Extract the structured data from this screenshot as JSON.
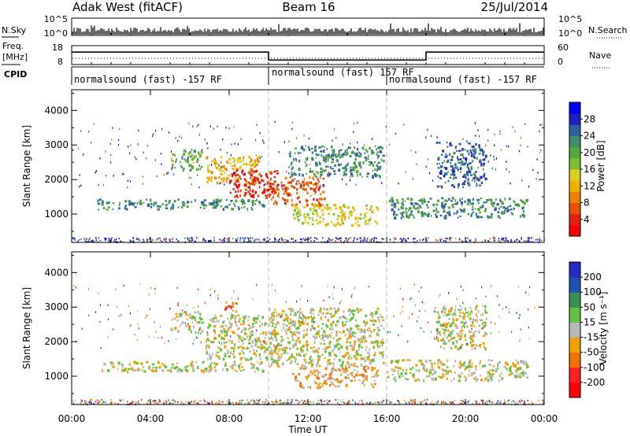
{
  "header": {
    "station": "Adak West (fitACF)",
    "beam": "Beam 16",
    "date": "25/Jul/2014"
  },
  "status_panels": {
    "nsky_label": "N.Sky",
    "nsky_ticks": [
      "10^5",
      "10^0"
    ],
    "nsearch_label": "N.Search",
    "nsearch_ticks": [
      "10^5",
      "10^0"
    ],
    "freq_label_line1": "Freq.",
    "freq_label_line2": "[MHz]",
    "freq_ticks": [
      "18",
      "8"
    ],
    "nave_label": "Nave",
    "nave_ticks": [
      "60",
      "0"
    ],
    "cpid_label": "CPID",
    "cpid_segments": [
      {
        "text": "normalsound (fast) -157 RF",
        "start_hour": 0,
        "end_hour": 10
      },
      {
        "text": "normalsound (fast) 157 RF",
        "start_hour": 10,
        "end_hour": 16
      },
      {
        "text": "normalsound (fast) -157 RF",
        "start_hour": 16,
        "end_hour": 24
      }
    ],
    "freq_steps": [
      {
        "start_hour": 0,
        "end_hour": 10,
        "mhz": 14.6
      },
      {
        "start_hour": 10,
        "end_hour": 18,
        "mhz": 10.4
      },
      {
        "start_hour": 18,
        "end_hour": 24,
        "mhz": 14.6
      }
    ]
  },
  "colorbars": {
    "power": {
      "label": "Power [dB]",
      "ticks": [
        "28",
        "24",
        "20",
        "16",
        "12",
        "8",
        "4"
      ],
      "colors": [
        "#0000ff",
        "#2020c0",
        "#2e5fa0",
        "#3c8f6a",
        "#55a83a",
        "#7fbf2f",
        "#d8d020",
        "#f0b000",
        "#f08000",
        "#e85000",
        "#e02010",
        "#ff0000"
      ]
    },
    "velocity": {
      "label": "Velocity [m s⁻¹]",
      "ticks": [
        "200",
        "100",
        "50",
        "15",
        "-15",
        "-50",
        "-100",
        "-200"
      ],
      "colors": [
        "#2828c8",
        "#2050b0",
        "#3a9050",
        "#63c040",
        "#b8b8b8",
        "#f0a000",
        "#f07000",
        "#ff2020",
        "#ff0000"
      ]
    }
  },
  "chart_data": [
    {
      "type": "heatmap",
      "name": "Power",
      "ylabel": "Slant Range [km]",
      "ylim": [
        180,
        4600
      ],
      "xlim": [
        0,
        24
      ],
      "yticks": [
        1000,
        2000,
        3000,
        4000
      ],
      "blobs": [
        {
          "t0": 1.3,
          "t1": 9.8,
          "r0": 1150,
          "r1": 1450,
          "level": 3
        },
        {
          "t0": 5.0,
          "t1": 6.6,
          "r0": 2300,
          "r1": 2900,
          "level": 4
        },
        {
          "t0": 6.8,
          "t1": 9.5,
          "r0": 1900,
          "r1": 2700,
          "level": 7
        },
        {
          "t0": 8.0,
          "t1": 10.5,
          "r0": 1500,
          "r1": 2300,
          "level": 10
        },
        {
          "t0": 10.0,
          "t1": 12.8,
          "r0": 1300,
          "r1": 2100,
          "level": 9
        },
        {
          "t0": 11.0,
          "t1": 15.8,
          "r0": 2100,
          "r1": 3000,
          "level": 3
        },
        {
          "t0": 11.2,
          "t1": 15.5,
          "r0": 700,
          "r1": 1300,
          "level": 6
        },
        {
          "t0": 16.0,
          "t1": 23.2,
          "r0": 900,
          "r1": 1500,
          "level": 3
        },
        {
          "t0": 18.5,
          "t1": 21.0,
          "r0": 1800,
          "r1": 3100,
          "level": 2
        }
      ]
    },
    {
      "type": "heatmap",
      "name": "Velocity",
      "ylabel": "Slant Range [km]",
      "ylim": [
        180,
        4600
      ],
      "xlim": [
        0,
        24
      ],
      "yticks": [
        1000,
        2000,
        3000,
        4000
      ],
      "blobs": [
        {
          "t0": 1.5,
          "t1": 9.8,
          "r0": 1150,
          "r1": 1450,
          "level": 4
        },
        {
          "t0": 5.0,
          "t1": 6.6,
          "r0": 2300,
          "r1": 2900,
          "level": 4
        },
        {
          "t0": 6.8,
          "t1": 10.5,
          "r0": 1500,
          "r1": 2800,
          "level": 4
        },
        {
          "t0": 10.0,
          "t1": 15.8,
          "r0": 1300,
          "r1": 3000,
          "level": 4
        },
        {
          "t0": 11.2,
          "t1": 15.5,
          "r0": 700,
          "r1": 1300,
          "level": 5
        },
        {
          "t0": 7.7,
          "t1": 8.4,
          "r0": 2900,
          "r1": 3200,
          "level": 6
        },
        {
          "t0": 16.0,
          "t1": 23.2,
          "r0": 900,
          "r1": 1500,
          "level": 4
        },
        {
          "t0": 18.5,
          "t1": 21.0,
          "r0": 1800,
          "r1": 3100,
          "level": 4
        }
      ]
    }
  ],
  "x_axis": {
    "label": "Time UT",
    "ticks": [
      "00:00",
      "04:00",
      "08:00",
      "12:00",
      "16:00",
      "20:00",
      "00:00"
    ]
  }
}
